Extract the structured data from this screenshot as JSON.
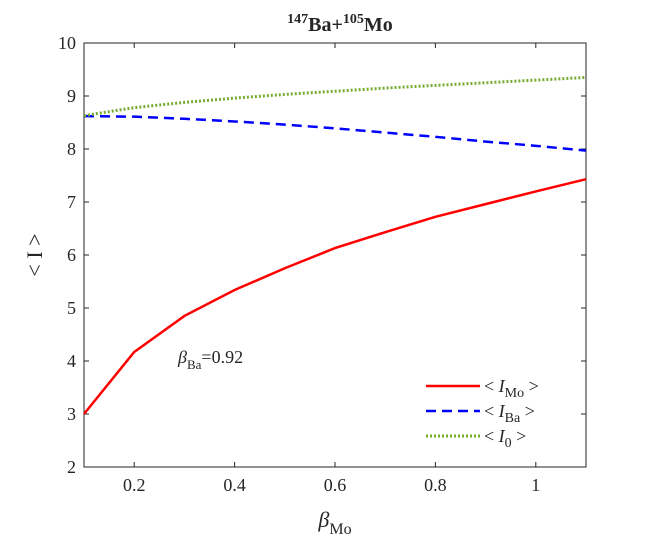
{
  "chart_data": {
    "type": "line",
    "title": {
      "sup1": "147",
      "base1": "Ba+",
      "sup2": "105",
      "base2": "Mo"
    },
    "xlabel": {
      "base": "β",
      "sub": "Mo"
    },
    "ylabel": "< I >",
    "xlim": [
      0.1,
      1.1
    ],
    "ylim": [
      2,
      10
    ],
    "xticks": [
      0.2,
      0.4,
      0.6,
      0.8,
      1
    ],
    "xtick_labels": [
      "0.2",
      "0.4",
      "0.6",
      "0.8",
      "1"
    ],
    "yticks": [
      2,
      3,
      4,
      5,
      6,
      7,
      8,
      9,
      10
    ],
    "ytick_labels": [
      "2",
      "3",
      "4",
      "5",
      "6",
      "7",
      "8",
      "9",
      "10"
    ],
    "grid": false,
    "legend_position": "bottom-right",
    "annotation": {
      "base": "β",
      "sub": "Ba",
      "value": "=0.92"
    },
    "x": [
      0.1,
      0.2,
      0.3,
      0.4,
      0.5,
      0.6,
      0.7,
      0.8,
      0.9,
      1.0,
      1.1
    ],
    "series": [
      {
        "name": "< I_Mo >",
        "legend_base": "I",
        "legend_sub": "Mo",
        "color": "#ff0000",
        "style": "solid",
        "values": [
          3.0,
          4.17,
          4.85,
          5.34,
          5.75,
          6.13,
          6.43,
          6.72,
          6.96,
          7.2,
          7.43
        ]
      },
      {
        "name": "< I_Ba >",
        "legend_base": "I",
        "legend_sub": "Ba",
        "color": "#0000ff",
        "style": "dashed",
        "values": [
          8.62,
          8.61,
          8.57,
          8.52,
          8.46,
          8.39,
          8.31,
          8.23,
          8.14,
          8.06,
          7.97
        ]
      },
      {
        "name": "< I_0 >",
        "legend_base": "I",
        "legend_sub": "0",
        "color": "#77ac30",
        "style": "dotted",
        "values": [
          8.63,
          8.78,
          8.88,
          8.96,
          9.03,
          9.09,
          9.15,
          9.2,
          9.25,
          9.3,
          9.35
        ]
      }
    ]
  }
}
